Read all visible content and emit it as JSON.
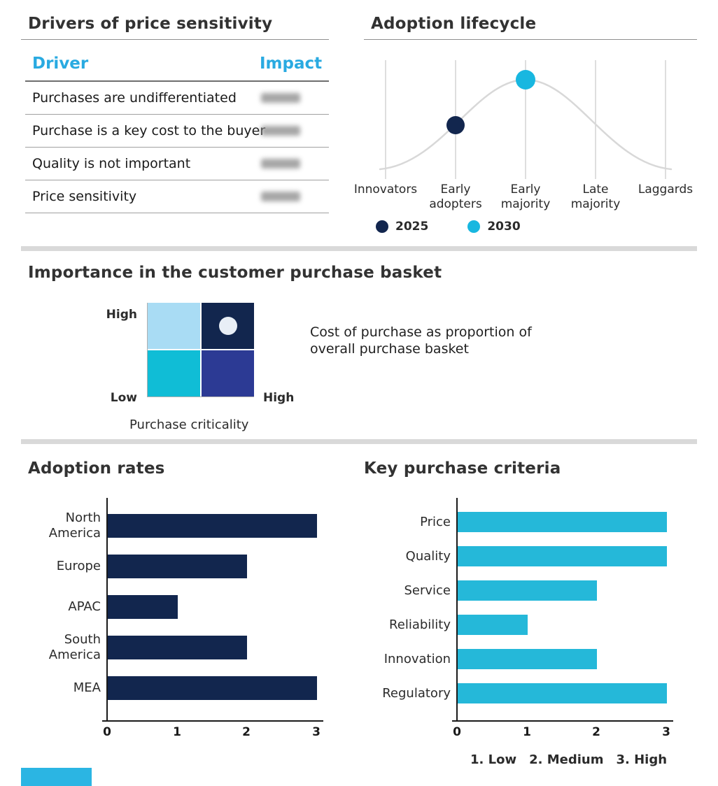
{
  "colors": {
    "navy": "#12264e",
    "cyan": "#25b8d9",
    "header_cyan": "#29aae1",
    "light_blue": "#a9dcf4",
    "teal_cyan": "#10bdd6",
    "indigo": "#2c3a94",
    "marker_white": "#e8eef6",
    "curve_gray": "#d8d8d8",
    "divider_gray": "#d9d9d9",
    "brand_bar_cyan": "#2bb5e3"
  },
  "chart_data": [
    {
      "id": "drivers_table",
      "type": "table",
      "title": "Drivers of price sensitivity",
      "columns": [
        "Driver",
        "Impact"
      ],
      "rows": [
        {
          "driver": "Purchases are undifferentiated",
          "impact_redacted": true
        },
        {
          "driver": "Purchase is a key cost to the buyer",
          "impact_redacted": true
        },
        {
          "driver": "Quality is not important",
          "impact_redacted": true
        },
        {
          "driver": "Price sensitivity",
          "impact_redacted": true
        }
      ]
    },
    {
      "id": "adoption_lifecycle",
      "type": "line",
      "title": "Adoption lifecycle",
      "curve_shape": "bell",
      "categories": [
        "Innovators",
        "Early adopters",
        "Early majority",
        "Late majority",
        "Laggards"
      ],
      "legend": [
        "2025",
        "2030"
      ],
      "points": [
        {
          "series": "2025",
          "category": "Early adopters",
          "position": "mid-curve"
        },
        {
          "series": "2030",
          "category": "Early majority",
          "position": "peak"
        }
      ]
    },
    {
      "id": "purchase_basket",
      "type": "heatmap",
      "title": "Importance in the customer purchase basket",
      "y_axis": {
        "top": "High",
        "bottom": "Low"
      },
      "x_axis": {
        "right": "High",
        "label": "Purchase criticality"
      },
      "cells": [
        [
          "#a9dcf4",
          "#12264e"
        ],
        [
          "#10bdd6",
          "#2c3a94"
        ]
      ],
      "marker": {
        "row": 0,
        "col": 1,
        "color": "#e8eef6"
      },
      "annotation": "Cost of purchase as proportion of overall purchase basket"
    },
    {
      "id": "adoption_rates",
      "type": "bar",
      "orientation": "horizontal",
      "title": "Adoption rates",
      "categories": [
        "North America",
        "Europe",
        "APAC",
        "South America",
        "MEA"
      ],
      "values": [
        3,
        2,
        1,
        2,
        3
      ],
      "xlim": [
        0,
        3
      ],
      "ticks": [
        "0",
        "1",
        "2",
        "3"
      ]
    },
    {
      "id": "key_purchase_criteria",
      "type": "bar",
      "orientation": "horizontal",
      "title": "Key purchase criteria",
      "categories": [
        "Price",
        "Quality",
        "Service",
        "Reliability",
        "Innovation",
        "Regulatory"
      ],
      "values": [
        3,
        3,
        2,
        1,
        2,
        3
      ],
      "xlim": [
        0,
        3
      ],
      "ticks": [
        "0",
        "1",
        "2",
        "3"
      ],
      "footnote_items": [
        "1. Low",
        "2. Medium",
        "3. High"
      ]
    }
  ]
}
